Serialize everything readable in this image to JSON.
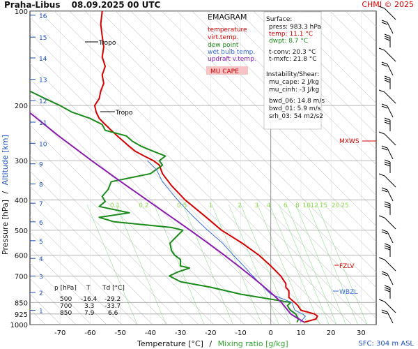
{
  "header": {
    "station": "Praha-Libus",
    "datetime": "08.09.2025 00 UTC",
    "copyright": "CHMI © 2025",
    "sfc": "SFC: 304 m ASL"
  },
  "legend": {
    "title": "EMAGRAM",
    "items": [
      {
        "label": "temperature",
        "color": "#d40000"
      },
      {
        "label": "virt.temp.",
        "color": "#d40000"
      },
      {
        "label": "dew point",
        "color": "#1a8a1a"
      },
      {
        "label": "wet bulb temp.",
        "color": "#3a6fd8"
      },
      {
        "label": "updraft v.temp.",
        "color": "#8b1ab0"
      }
    ],
    "mucape_button": "MU CAPE"
  },
  "indices": {
    "surface_title": "Surface:",
    "press": "press: 983.3 hPa",
    "temp": "temp: 11.1 °C",
    "dwpt": "dwpt: 8.7 °C",
    "tconv": "t-conv: 20.3 °C",
    "tmxfc": "t-mxfc: 21.8 °C",
    "instability_title": "Instability/Shear:",
    "mu_cape": "mu_cape: 2 J/kg",
    "mu_cinh": "mu_cinh: -3 J/kg",
    "bwd_06": "bwd_06: 14.8 m/s",
    "bwd_01": "bwd_01: 5.9 m/s",
    "srh_03": "srh_03: 54 m2/s2"
  },
  "table": {
    "headers": [
      "p [hPa]",
      "T",
      "Td [°C]"
    ],
    "rows": [
      [
        "500",
        "-16.4",
        "-29.2"
      ],
      [
        "700",
        "3.3",
        "-33.7"
      ],
      [
        "850",
        "7.9",
        "6.6"
      ]
    ]
  },
  "level_labels": {
    "tropo": "Tropo",
    "mxws": "MXWS",
    "fzlv": "FZLV",
    "wbzl": "WBZL"
  },
  "chart_data": {
    "type": "line",
    "xlabel": "Temperature [°C]",
    "xlabel_sep": "/",
    "xlabel2": "Mixing ratio [g/kg]",
    "ylabel": "Pressure [hPa]",
    "ylabel_sep": "/",
    "ylabel2": "Altitude [km]",
    "xlim": [
      -80,
      35
    ],
    "ylim": [
      1000,
      100
    ],
    "y_scale": "log",
    "grid": true,
    "x_ticks": [
      "-70",
      "-60",
      "-50",
      "-40",
      "-30",
      "-20",
      "-10",
      "0",
      "10",
      "20",
      "30"
    ],
    "x_tick_values": [
      -70,
      -60,
      -50,
      -40,
      -30,
      -20,
      -10,
      0,
      10,
      20,
      30
    ],
    "p_ticks": [
      "100",
      "200",
      "300",
      "400",
      "500",
      "600",
      "700",
      "850",
      "925",
      "1000"
    ],
    "p_tick_values": [
      100,
      200,
      300,
      400,
      500,
      600,
      700,
      850,
      925,
      1000
    ],
    "alt_ticks": [
      "1",
      "2",
      "3",
      "4",
      "5",
      "6",
      "7",
      "8",
      "9",
      "10",
      "11",
      "12",
      "13",
      "14",
      "15",
      "16"
    ],
    "alt_tick_pressures": [
      900,
      790,
      700,
      615,
      540,
      470,
      410,
      356,
      307,
      264,
      226,
      193,
      165,
      141,
      121,
      103
    ],
    "mixing_ratio_labels": [
      "0.1",
      "0.2",
      "0.5",
      "1",
      "2",
      "3",
      "4",
      "6",
      "8",
      "10",
      "12",
      "15",
      "20",
      "25"
    ],
    "mixing_ratio_values": [
      0.1,
      0.2,
      0.5,
      1,
      2,
      3,
      4,
      6,
      8,
      10,
      12,
      15,
      20,
      25
    ],
    "series": [
      {
        "key": "temperature",
        "color": "#d40000",
        "points": [
          [
            983,
            11.1
          ],
          [
            960,
            15
          ],
          [
            940,
            15.5
          ],
          [
            925,
            14.5
          ],
          [
            900,
            10
          ],
          [
            870,
            9
          ],
          [
            850,
            7.9
          ],
          [
            820,
            6
          ],
          [
            800,
            6
          ],
          [
            780,
            6
          ],
          [
            760,
            5
          ],
          [
            740,
            5
          ],
          [
            700,
            3.3
          ],
          [
            650,
            0
          ],
          [
            600,
            -4
          ],
          [
            550,
            -9.5
          ],
          [
            500,
            -16.4
          ],
          [
            450,
            -22
          ],
          [
            400,
            -28.5
          ],
          [
            360,
            -33
          ],
          [
            330,
            -36
          ],
          [
            310,
            -37
          ],
          [
            300,
            -39
          ],
          [
            290,
            -42
          ],
          [
            280,
            -45
          ],
          [
            270,
            -47
          ],
          [
            260,
            -49
          ],
          [
            250,
            -51
          ],
          [
            240,
            -53
          ],
          [
            230,
            -55
          ],
          [
            220,
            -57
          ],
          [
            210,
            -58
          ],
          [
            200,
            -58.5
          ],
          [
            190,
            -57
          ],
          [
            180,
            -56.5
          ],
          [
            170,
            -55.5
          ],
          [
            160,
            -56
          ],
          [
            150,
            -55
          ],
          [
            140,
            -56
          ],
          [
            130,
            -55.5
          ],
          [
            120,
            -56
          ],
          [
            110,
            -56.5
          ],
          [
            100,
            -56
          ]
        ]
      },
      {
        "key": "dewpoint",
        "color": "#1a8a1a",
        "points": [
          [
            983,
            8.7
          ],
          [
            960,
            9.2
          ],
          [
            940,
            8.6
          ],
          [
            925,
            8.3
          ],
          [
            900,
            6.5
          ],
          [
            870,
            5.5
          ],
          [
            850,
            6.6
          ],
          [
            800,
            -10
          ],
          [
            760,
            -20
          ],
          [
            730,
            -30
          ],
          [
            700,
            -33.7
          ],
          [
            680,
            -31
          ],
          [
            660,
            -27
          ],
          [
            650,
            -30
          ],
          [
            620,
            -30
          ],
          [
            600,
            -32
          ],
          [
            580,
            -33
          ],
          [
            550,
            -33.5
          ],
          [
            520,
            -31
          ],
          [
            500,
            -29.2
          ],
          [
            490,
            -33
          ],
          [
            470,
            -52
          ],
          [
            455,
            -57
          ],
          [
            440,
            -47
          ],
          [
            420,
            -57
          ],
          [
            405,
            -55
          ],
          [
            390,
            -56
          ],
          [
            370,
            -54
          ],
          [
            350,
            -53
          ],
          [
            330,
            -40
          ],
          [
            310,
            -36
          ],
          [
            300,
            -37
          ],
          [
            290,
            -35
          ],
          [
            280,
            -39
          ],
          [
            270,
            -43
          ],
          [
            260,
            -46
          ],
          [
            250,
            -48
          ],
          [
            240,
            -55
          ],
          [
            230,
            -56
          ],
          [
            220,
            -60
          ],
          [
            210,
            -66
          ],
          [
            200,
            -70
          ],
          [
            190,
            -75
          ],
          [
            180,
            -80
          ]
        ]
      },
      {
        "key": "wetbulb",
        "color": "#3a6fd8",
        "points": [
          [
            983,
            9.8
          ],
          [
            940,
            11.5
          ],
          [
            925,
            10.5
          ],
          [
            900,
            8
          ],
          [
            850,
            7
          ],
          [
            800,
            0
          ],
          [
            750,
            -3
          ],
          [
            700,
            -6
          ],
          [
            650,
            -9
          ],
          [
            600,
            -12.5
          ],
          [
            550,
            -16
          ],
          [
            500,
            -21
          ],
          [
            450,
            -26
          ],
          [
            400,
            -31
          ],
          [
            350,
            -36
          ],
          [
            320,
            -38
          ],
          [
            300,
            -41
          ]
        ]
      },
      {
        "key": "parcel",
        "color": "#8b1ab0",
        "points": [
          [
            983,
            11.1
          ],
          [
            950,
            8.5
          ],
          [
            925,
            6.6
          ],
          [
            880,
            4.8
          ],
          [
            850,
            3.5
          ],
          [
            800,
            0.6
          ],
          [
            750,
            -2.8
          ],
          [
            700,
            -6.6
          ],
          [
            650,
            -10.8
          ],
          [
            600,
            -15.5
          ],
          [
            550,
            -20.8
          ],
          [
            500,
            -26.8
          ],
          [
            450,
            -33.6
          ],
          [
            400,
            -41.2
          ],
          [
            350,
            -49.8
          ],
          [
            300,
            -59.5
          ],
          [
            250,
            -70.5
          ],
          [
            200,
            -83
          ]
        ]
      }
    ]
  }
}
